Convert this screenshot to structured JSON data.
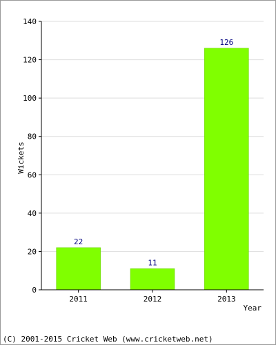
{
  "chart_data": {
    "type": "bar",
    "categories": [
      "2011",
      "2012",
      "2013"
    ],
    "values": [
      22,
      11,
      126
    ],
    "title": "",
    "xlabel": "Year",
    "ylabel": "Wickets",
    "ylim": [
      0,
      140
    ],
    "yticks": [
      0,
      20,
      40,
      60,
      80,
      100,
      120,
      140
    ],
    "grid": true,
    "legend": "none"
  },
  "colors": {
    "bar_fill": "#80ff00",
    "bar_edge": "#66cc00",
    "value_label": "#000080",
    "grid": "#dddddd",
    "axis": "#000000"
  },
  "footer": {
    "copyright": "(C) 2001-2015 Cricket Web (www.cricketweb.net)"
  }
}
